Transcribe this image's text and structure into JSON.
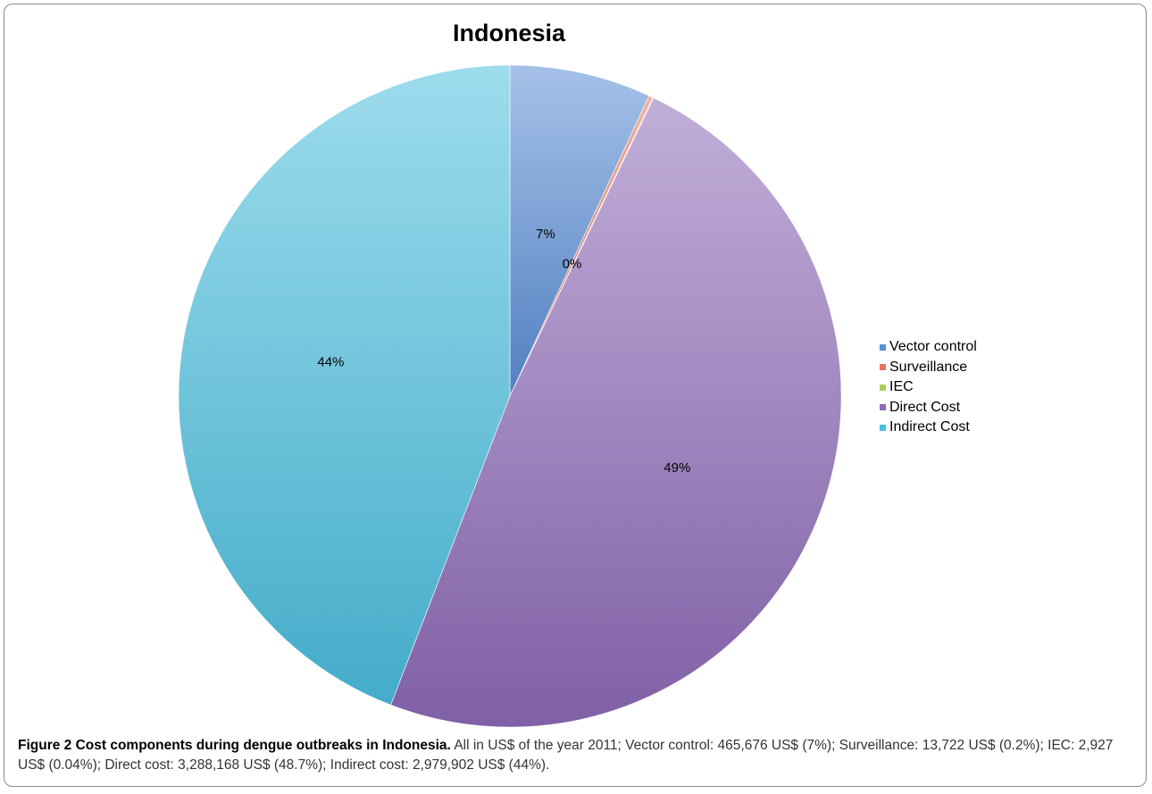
{
  "chart_data": {
    "type": "pie",
    "title": "Indonesia",
    "categories": [
      "Vector control",
      "Surveillance",
      "IEC",
      "Direct Cost",
      "Indirect Cost"
    ],
    "values": [
      465676,
      13722,
      2927,
      3288168,
      2979902
    ],
    "data_labels": [
      "7%",
      "0%",
      "",
      "49%",
      "44%"
    ],
    "colors": [
      "#5b8ed6",
      "#e8735f",
      "#a6cf5a",
      "#8e6bb8",
      "#4cbfdf"
    ],
    "legend_position": "right"
  },
  "caption": {
    "label": "Figure 2 Cost components during dengue outbreaks in Indonesia.",
    "text": "All in US$ of the year 2011; Vector control: 465,676 US$ (7%); Surveillance: 13,722 US$ (0.2%); IEC: 2,927 US$ (0.04%); Direct cost: 3,288,168 US$ (48.7%); Indirect cost: 2,979,902 US$ (44%)."
  }
}
